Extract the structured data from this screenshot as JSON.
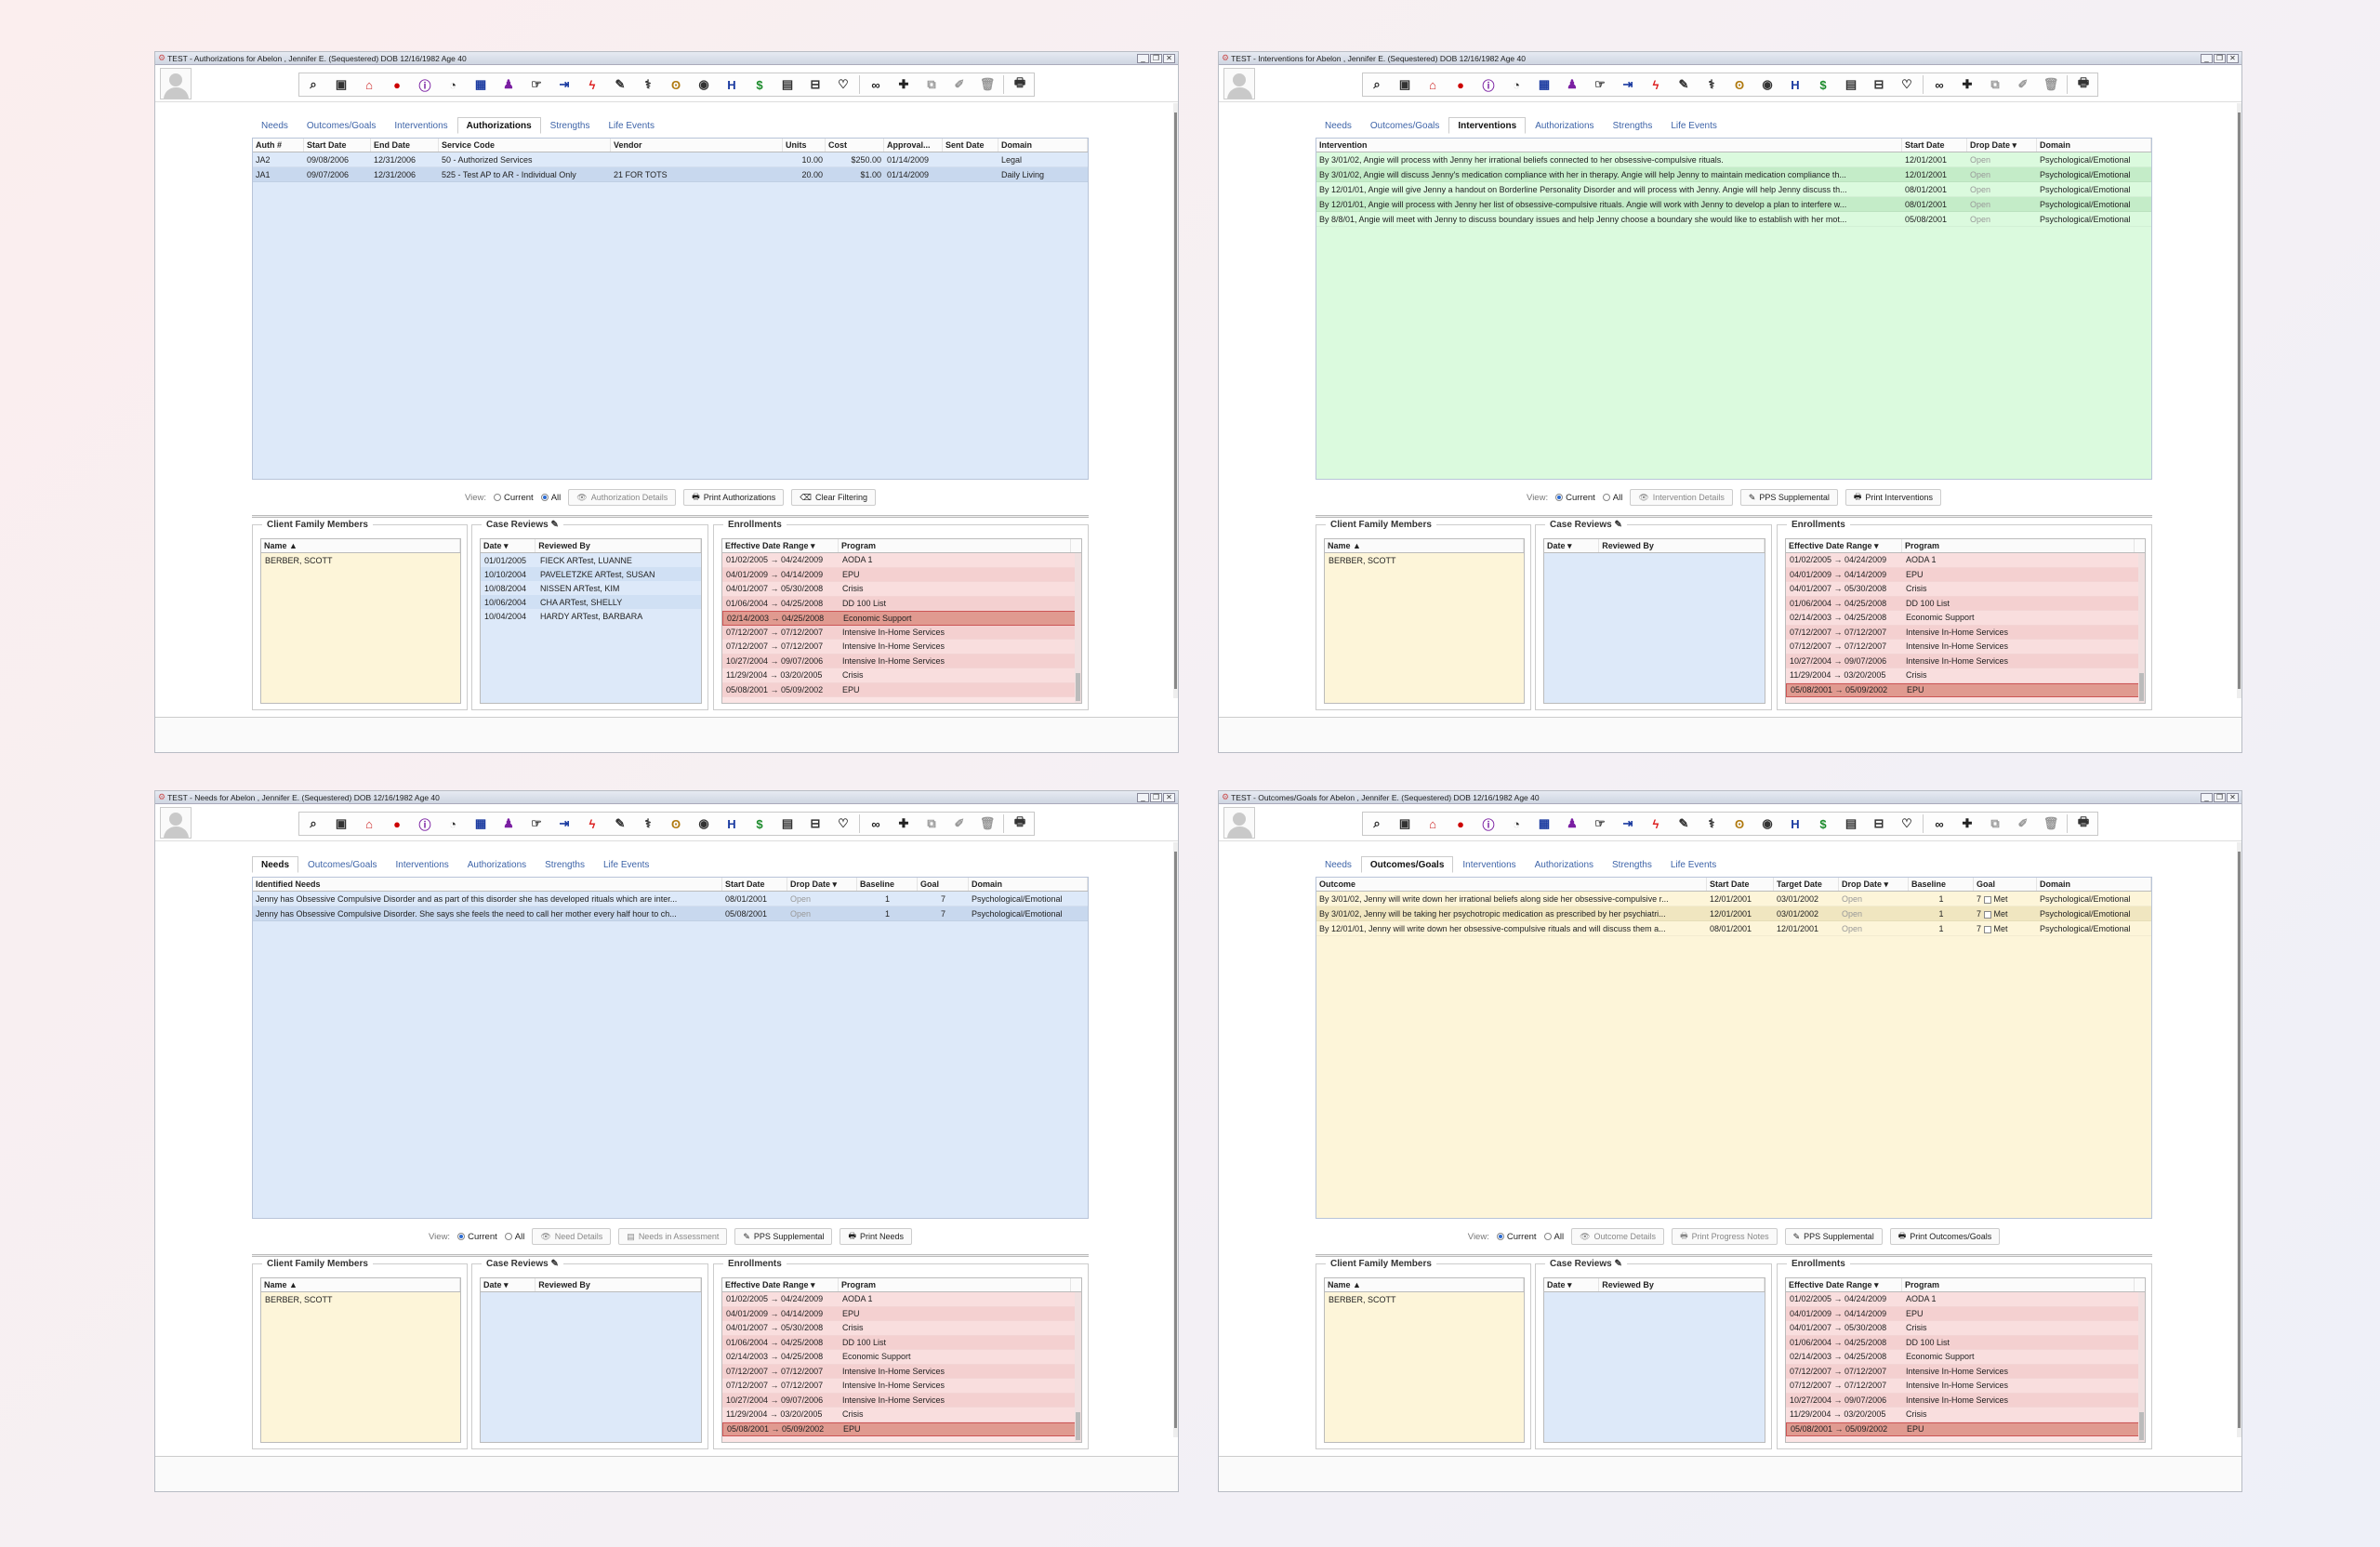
{
  "titles": {
    "w1": "TEST - Authorizations for Abelon , Jennifer E. (Sequestered) DOB 12/16/1982 Age 40",
    "w2": "TEST - Interventions for Abelon , Jennifer E. (Sequestered) DOB 12/16/1982 Age 40",
    "w3": "TEST - Needs for Abelon , Jennifer E. (Sequestered) DOB 12/16/1982 Age 40",
    "w4": "TEST - Outcomes/Goals for Abelon , Jennifer E. (Sequestered) DOB 12/16/1982 Age 40"
  },
  "tabs": [
    "Needs",
    "Outcomes/Goals",
    "Interventions",
    "Authorizations",
    "Strengths",
    "Life Events"
  ],
  "view_label": "View:",
  "radio_current": "Current",
  "radio_all": "All",
  "panels": {
    "family": "Client Family Members",
    "reviews": "Case Reviews",
    "enrollments": "Enrollments",
    "name_col": "Name",
    "date_col": "Date",
    "reviewed_col": "Reviewed By",
    "range_col": "Effective Date Range",
    "program_col": "Program"
  },
  "family_member": "BERBER, SCOTT",
  "case_reviews": [
    {
      "date": "01/01/2005",
      "by": "FIECK ARTest, LUANNE"
    },
    {
      "date": "10/10/2004",
      "by": "PAVELETZKE ARTest, SUSAN"
    },
    {
      "date": "10/08/2004",
      "by": "NISSEN ARTest, KIM"
    },
    {
      "date": "10/06/2004",
      "by": "CHA ARTest, SHELLY"
    },
    {
      "date": "10/04/2004",
      "by": "HARDY ARTest, BARBARA"
    }
  ],
  "enrollments": [
    {
      "range": "01/02/2005 → 04/24/2009",
      "program": "AODA 1"
    },
    {
      "range": "04/01/2009 → 04/14/2009",
      "program": "EPU"
    },
    {
      "range": "04/01/2007 → 05/30/2008",
      "program": "Crisis"
    },
    {
      "range": "01/06/2004 → 04/25/2008",
      "program": "DD 100 List"
    },
    {
      "range": "02/14/2003 → 04/25/2008",
      "program": "Economic Support"
    },
    {
      "range": "07/12/2007 → 07/12/2007",
      "program": "Intensive In-Home Services"
    },
    {
      "range": "07/12/2007 → 07/12/2007",
      "program": "Intensive In-Home Services"
    },
    {
      "range": "10/27/2004 → 09/07/2006",
      "program": "Intensive In-Home Services"
    },
    {
      "range": "11/29/2004 → 03/20/2005",
      "program": "Crisis"
    },
    {
      "range": "05/08/2001 → 05/09/2002",
      "program": "EPU"
    }
  ],
  "auth": {
    "headers": [
      "Auth #",
      "Start Date",
      "End Date",
      "Service Code",
      "Vendor",
      "Units",
      "Cost",
      "Approval...",
      "Sent Date",
      "Domain"
    ],
    "rows": [
      [
        "JA2",
        "09/08/2006",
        "12/31/2006",
        "50 - Authorized Services",
        "",
        "10.00",
        "$250.00",
        "01/14/2009",
        "",
        "Legal"
      ],
      [
        "JA1",
        "09/07/2006",
        "12/31/2006",
        "525 - Test AP to AR - Individual Only",
        "21 FOR TOTS",
        "20.00",
        "$1.00",
        "01/14/2009",
        "",
        "Daily Living"
      ]
    ],
    "buttons": [
      "Authorization Details",
      "Print Authorizations",
      "Clear Filtering"
    ]
  },
  "interv": {
    "headers": [
      "Intervention",
      "Start Date",
      "Drop Date",
      "Domain"
    ],
    "rows": [
      [
        "By 3/01/02, Angie will process with Jenny her irrational beliefs connected to her obsessive-compulsive rituals.",
        "12/01/2001",
        "Open",
        "Psychological/Emotional"
      ],
      [
        "By 3/01/02, Angie will discuss Jenny's medication compliance with her in therapy. Angie will help Jenny to maintain medication compliance th...",
        "12/01/2001",
        "Open",
        "Psychological/Emotional"
      ],
      [
        "By 12/01/01, Angie will give Jenny a handout on Borderline Personality Disorder and will process with Jenny. Angie will help Jenny discuss th...",
        "08/01/2001",
        "Open",
        "Psychological/Emotional"
      ],
      [
        "By 12/01/01, Angie will process with Jenny her list of obsessive-compulsive rituals. Angie will work with Jenny to develop a plan to interfere w...",
        "08/01/2001",
        "Open",
        "Psychological/Emotional"
      ],
      [
        "By 8/8/01, Angie will meet with Jenny to discuss boundary issues and help Jenny choose a boundary she would like to establish with her mot...",
        "05/08/2001",
        "Open",
        "Psychological/Emotional"
      ]
    ],
    "buttons": [
      "Intervention Details",
      "PPS Supplemental",
      "Print Interventions"
    ]
  },
  "needs": {
    "headers": [
      "Identified Needs",
      "Start Date",
      "Drop Date",
      "Baseline",
      "Goal",
      "Domain"
    ],
    "rows": [
      [
        "Jenny has Obsessive Compulsive Disorder and as part of this disorder she has developed rituals which are inter...",
        "08/01/2001",
        "Open",
        "1",
        "7",
        "Psychological/Emotional"
      ],
      [
        "Jenny has Obsessive Compulsive Disorder. She says she feels the need to call her mother every half hour to ch...",
        "05/08/2001",
        "Open",
        "1",
        "7",
        "Psychological/Emotional"
      ]
    ],
    "buttons": [
      "Need Details",
      "Needs in Assessment",
      "PPS Supplemental",
      "Print Needs"
    ]
  },
  "outcomes": {
    "headers": [
      "Outcome",
      "Start Date",
      "Target Date",
      "Drop Date",
      "Baseline",
      "Goal",
      "Domain"
    ],
    "met_label": "Met",
    "rows": [
      [
        "By 3/01/02, Jenny will write down her irrational beliefs along side her obsessive-compulsive r...",
        "12/01/2001",
        "03/01/2002",
        "Open",
        "1",
        "7",
        "Psychological/Emotional"
      ],
      [
        "By 3/01/02, Jenny will be taking her psychotropic medication as prescribed by her psychiatri...",
        "12/01/2001",
        "03/01/2002",
        "Open",
        "1",
        "7",
        "Psychological/Emotional"
      ],
      [
        "By 12/01/01, Jenny will write down her obsessive-compulsive rituals and will discuss them a...",
        "08/01/2001",
        "12/01/2001",
        "Open",
        "1",
        "7",
        "Psychological/Emotional"
      ]
    ],
    "buttons": [
      "Outcome Details",
      "Print Progress Notes",
      "PPS Supplemental",
      "Print Outcomes/Goals"
    ]
  },
  "colors": {
    "tab_link": "#3e64a8",
    "blue_grid": "#dde9f9",
    "green_grid": "#dbfade",
    "yellow_grid": "#fdf5d9",
    "enroll_bg": "#fbe4e4"
  }
}
